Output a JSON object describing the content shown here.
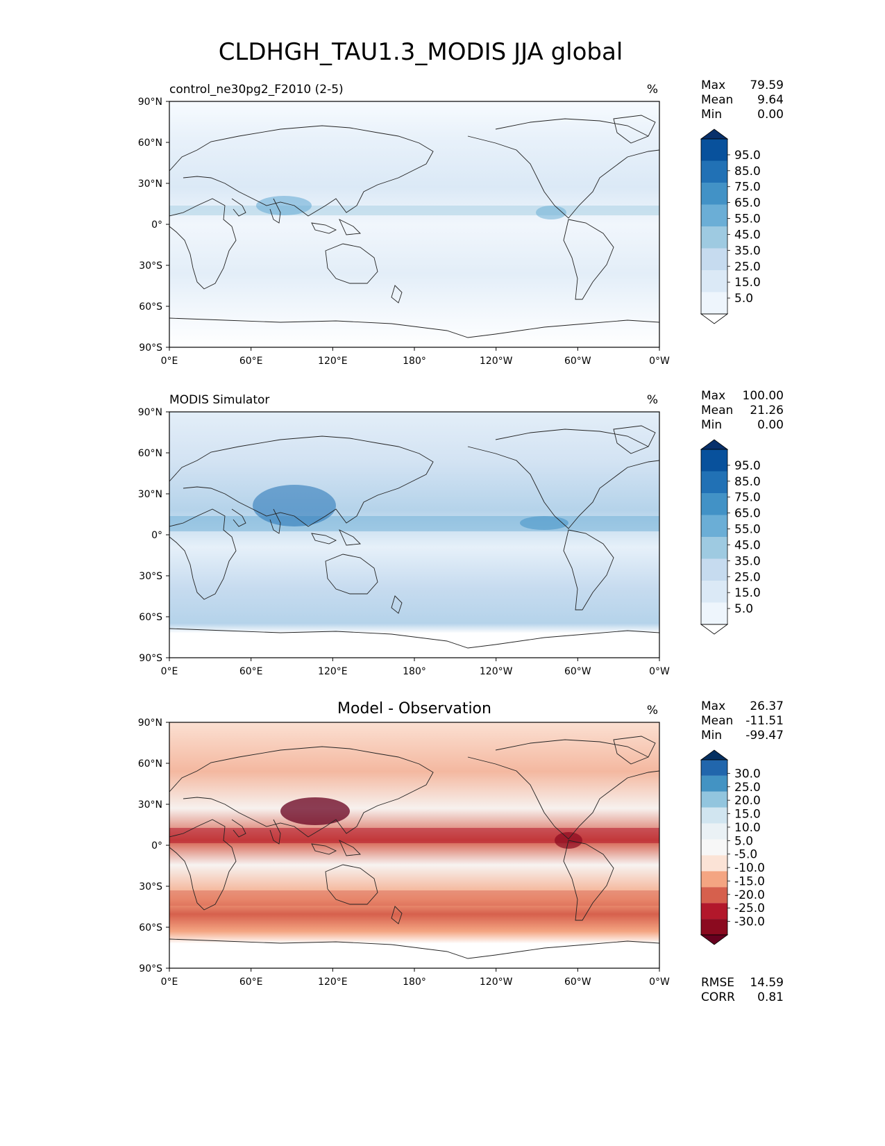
{
  "title": "CLDHGH_TAU1.3_MODIS JJA global",
  "x_ticks": [
    "0°E",
    "60°E",
    "120°E",
    "180°",
    "120°W",
    "60°W",
    "0°W"
  ],
  "y_ticks": [
    "90°N",
    "60°N",
    "30°N",
    "0°",
    "30°S",
    "60°S",
    "90°S"
  ],
  "panels": [
    {
      "name": "test",
      "left_title": "control_ne30pg2_F2010 (2-5)",
      "center_title": "",
      "units": "%",
      "stats": [
        {
          "label": "Max",
          "value": "79.59"
        },
        {
          "label": "Mean",
          "value": "9.64"
        },
        {
          "label": "Min",
          "value": "0.00"
        }
      ],
      "colorbar_levels": [
        "95.0",
        "85.0",
        "75.0",
        "65.0",
        "55.0",
        "45.0",
        "35.0",
        "25.0",
        "15.0",
        "5.0"
      ],
      "colorbar_colors": [
        "#08306b",
        "#08519c",
        "#2171b5",
        "#4292c6",
        "#6baed6",
        "#9ecae1",
        "#c6dbef",
        "#dbe9f6",
        "#eef5fc",
        "#ffffff"
      ]
    },
    {
      "name": "reference",
      "left_title": "MODIS Simulator",
      "center_title": "",
      "units": "%",
      "stats": [
        {
          "label": "Max",
          "value": "100.00"
        },
        {
          "label": "Mean",
          "value": "21.26"
        },
        {
          "label": "Min",
          "value": "0.00"
        }
      ],
      "colorbar_levels": [
        "95.0",
        "85.0",
        "75.0",
        "65.0",
        "55.0",
        "45.0",
        "35.0",
        "25.0",
        "15.0",
        "5.0"
      ],
      "colorbar_colors": [
        "#08306b",
        "#08519c",
        "#2171b5",
        "#4292c6",
        "#6baed6",
        "#9ecae1",
        "#c6dbef",
        "#dbe9f6",
        "#eef5fc",
        "#ffffff"
      ]
    },
    {
      "name": "difference",
      "left_title": "",
      "center_title": "Model - Observation",
      "units": "%",
      "stats": [
        {
          "label": "Max",
          "value": "26.37"
        },
        {
          "label": "Mean",
          "value": "-11.51"
        },
        {
          "label": "Min",
          "value": "-99.47"
        }
      ],
      "extra_stats": [
        {
          "label": "RMSE",
          "value": "14.59"
        },
        {
          "label": "CORR",
          "value": "0.81"
        }
      ],
      "colorbar_levels": [
        "30.0",
        "25.0",
        "20.0",
        "15.0",
        "10.0",
        "5.0",
        "-5.0",
        "-10.0",
        "-15.0",
        "-20.0",
        "-25.0",
        "-30.0"
      ],
      "colorbar_colors": [
        "#053061",
        "#2166ac",
        "#4393c3",
        "#92c5de",
        "#d1e5f0",
        "#eaf1f5",
        "#f7f7f7",
        "#fbe3d6",
        "#f4a582",
        "#d6604d",
        "#b2182b",
        "#8b0a1f",
        "#67001f"
      ]
    }
  ]
}
